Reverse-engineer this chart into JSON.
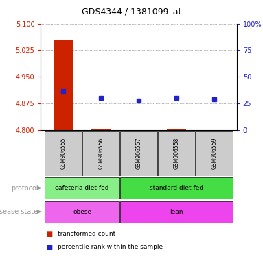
{
  "title": "GDS4344 / 1381099_at",
  "samples": [
    "GSM906555",
    "GSM906556",
    "GSM906557",
    "GSM906558",
    "GSM906559"
  ],
  "red_values": [
    5.055,
    4.802,
    4.8,
    4.802,
    4.801
  ],
  "blue_percentiles": [
    37,
    30,
    28,
    30,
    29
  ],
  "ylim_left": [
    4.8,
    5.1
  ],
  "ylim_right": [
    0,
    100
  ],
  "yticks_left": [
    4.8,
    4.875,
    4.95,
    5.025,
    5.1
  ],
  "yticks_right": [
    0,
    25,
    50,
    75,
    100
  ],
  "protocol_groups": [
    {
      "label": "cafeteria diet fed",
      "start": 0,
      "end": 2,
      "color": "#88EE88"
    },
    {
      "label": "standard diet fed",
      "start": 2,
      "end": 5,
      "color": "#44DD44"
    }
  ],
  "disease_groups": [
    {
      "label": "obese",
      "start": 0,
      "end": 2,
      "color": "#EE66EE"
    },
    {
      "label": "lean",
      "start": 2,
      "end": 5,
      "color": "#EE44EE"
    }
  ],
  "red_color": "#CC2200",
  "blue_color": "#2222CC",
  "bar_width": 0.5,
  "grid_color": "#666666",
  "bg_color": "#FFFFFF",
  "sample_bg": "#CCCCCC",
  "label_color": "#999999"
}
